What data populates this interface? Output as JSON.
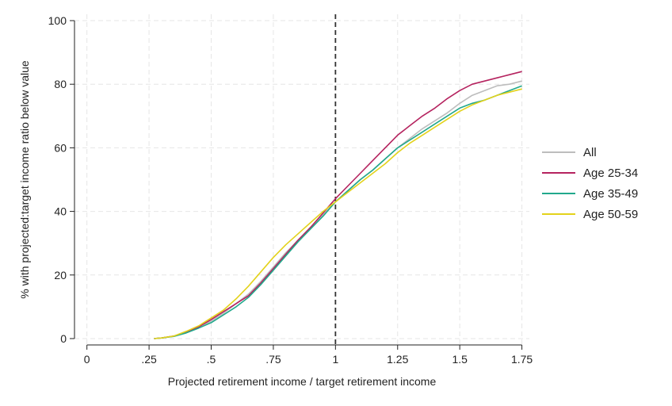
{
  "chart_data": {
    "type": "line",
    "title": "",
    "xlabel": "Projected retirement income / target retirement income",
    "ylabel": "% with projected:target income ratio below value",
    "xlim": [
      -0.05,
      1.78
    ],
    "ylim": [
      -2,
      102
    ],
    "xticks": [
      0,
      0.25,
      0.5,
      0.75,
      1,
      1.25,
      1.5,
      1.75
    ],
    "xtick_labels": [
      "0",
      ".25",
      ".5",
      ".75",
      "1",
      "1.25",
      "1.5",
      "1.75"
    ],
    "yticks": [
      0,
      20,
      40,
      60,
      80,
      100
    ],
    "ytick_labels": [
      "0",
      "20",
      "40",
      "60",
      "80",
      "100"
    ],
    "grid": true,
    "reference_line": {
      "x": 1,
      "style": "dashed"
    },
    "legend": {
      "placement": "right"
    },
    "series": [
      {
        "name": "All",
        "color": "#bdbdbd",
        "points": [
          [
            0.27,
            0
          ],
          [
            0.3,
            0.2
          ],
          [
            0.35,
            0.8
          ],
          [
            0.4,
            2
          ],
          [
            0.45,
            3.5
          ],
          [
            0.5,
            5.5
          ],
          [
            0.55,
            8
          ],
          [
            0.6,
            11
          ],
          [
            0.65,
            14
          ],
          [
            0.7,
            18
          ],
          [
            0.75,
            22.5
          ],
          [
            0.8,
            27
          ],
          [
            0.85,
            31
          ],
          [
            0.9,
            35
          ],
          [
            0.95,
            39
          ],
          [
            1.0,
            43
          ],
          [
            1.05,
            46.5
          ],
          [
            1.1,
            50
          ],
          [
            1.15,
            53
          ],
          [
            1.2,
            56.5
          ],
          [
            1.25,
            60
          ],
          [
            1.3,
            63
          ],
          [
            1.35,
            66
          ],
          [
            1.4,
            68.5
          ],
          [
            1.45,
            71
          ],
          [
            1.5,
            74
          ],
          [
            1.55,
            76.5
          ],
          [
            1.6,
            78
          ],
          [
            1.65,
            79.5
          ],
          [
            1.7,
            80
          ],
          [
            1.75,
            81
          ]
        ]
      },
      {
        "name": "Age 25-34",
        "color": "#b5235f",
        "points": [
          [
            0.27,
            0
          ],
          [
            0.3,
            0.2
          ],
          [
            0.35,
            0.8
          ],
          [
            0.4,
            2
          ],
          [
            0.45,
            3.7
          ],
          [
            0.5,
            6
          ],
          [
            0.55,
            8.5
          ],
          [
            0.6,
            11
          ],
          [
            0.65,
            13.5
          ],
          [
            0.7,
            17.5
          ],
          [
            0.75,
            22
          ],
          [
            0.8,
            26.5
          ],
          [
            0.85,
            31
          ],
          [
            0.9,
            35
          ],
          [
            0.95,
            39.5
          ],
          [
            1.0,
            44
          ],
          [
            1.05,
            48
          ],
          [
            1.1,
            52
          ],
          [
            1.15,
            56
          ],
          [
            1.2,
            60
          ],
          [
            1.25,
            64
          ],
          [
            1.3,
            67
          ],
          [
            1.35,
            70
          ],
          [
            1.4,
            72.5
          ],
          [
            1.45,
            75.5
          ],
          [
            1.5,
            78
          ],
          [
            1.55,
            80
          ],
          [
            1.6,
            81
          ],
          [
            1.65,
            82
          ],
          [
            1.7,
            83
          ],
          [
            1.75,
            84
          ]
        ]
      },
      {
        "name": "Age 35-49",
        "color": "#22a88c",
        "points": [
          [
            0.27,
            0
          ],
          [
            0.3,
            0.2
          ],
          [
            0.35,
            0.7
          ],
          [
            0.4,
            1.8
          ],
          [
            0.45,
            3.3
          ],
          [
            0.5,
            5
          ],
          [
            0.55,
            7.5
          ],
          [
            0.6,
            10
          ],
          [
            0.65,
            13
          ],
          [
            0.7,
            17
          ],
          [
            0.75,
            21.5
          ],
          [
            0.8,
            26
          ],
          [
            0.85,
            30.5
          ],
          [
            0.9,
            34.5
          ],
          [
            0.95,
            38.5
          ],
          [
            1.0,
            43
          ],
          [
            1.05,
            46.5
          ],
          [
            1.1,
            50
          ],
          [
            1.15,
            53
          ],
          [
            1.2,
            56.5
          ],
          [
            1.25,
            60
          ],
          [
            1.3,
            62.5
          ],
          [
            1.35,
            65
          ],
          [
            1.4,
            67.5
          ],
          [
            1.45,
            70
          ],
          [
            1.5,
            72.5
          ],
          [
            1.55,
            74
          ],
          [
            1.6,
            75
          ],
          [
            1.65,
            76.5
          ],
          [
            1.7,
            78
          ],
          [
            1.75,
            79.5
          ]
        ]
      },
      {
        "name": "Age 50-59",
        "color": "#e3d21b",
        "points": [
          [
            0.27,
            0
          ],
          [
            0.3,
            0.2
          ],
          [
            0.35,
            0.8
          ],
          [
            0.4,
            2.3
          ],
          [
            0.45,
            4
          ],
          [
            0.5,
            6.5
          ],
          [
            0.55,
            9
          ],
          [
            0.6,
            12.5
          ],
          [
            0.65,
            16.5
          ],
          [
            0.7,
            21
          ],
          [
            0.75,
            25.5
          ],
          [
            0.8,
            29.5
          ],
          [
            0.85,
            33
          ],
          [
            0.9,
            36.5
          ],
          [
            0.95,
            40
          ],
          [
            1.0,
            43
          ],
          [
            1.05,
            46
          ],
          [
            1.1,
            49
          ],
          [
            1.15,
            52
          ],
          [
            1.2,
            55
          ],
          [
            1.25,
            58.5
          ],
          [
            1.3,
            61.5
          ],
          [
            1.35,
            64
          ],
          [
            1.4,
            66.5
          ],
          [
            1.45,
            69
          ],
          [
            1.5,
            71.5
          ],
          [
            1.55,
            73.5
          ],
          [
            1.6,
            75
          ],
          [
            1.65,
            76.5
          ],
          [
            1.7,
            77.5
          ],
          [
            1.75,
            78.5
          ]
        ]
      }
    ]
  }
}
